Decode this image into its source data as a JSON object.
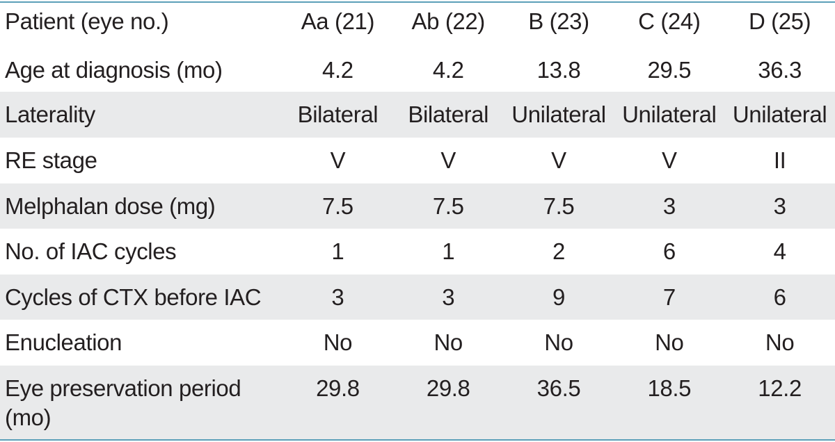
{
  "table": {
    "header": {
      "label": "Patient (eye no.)",
      "columns": [
        "Aa (21)",
        "Ab (22)",
        "B (23)",
        "C (24)",
        "D (25)"
      ]
    },
    "rows": [
      {
        "label": "Age at diagnosis (mo)",
        "values": [
          "4.2",
          "4.2",
          "13.8",
          "29.5",
          "36.3"
        ]
      },
      {
        "label": "Laterality",
        "values": [
          "Bilateral",
          "Bilateral",
          "Unilateral",
          "Unilateral",
          "Unilateral"
        ]
      },
      {
        "label": "RE stage",
        "values": [
          "V",
          "V",
          "V",
          "V",
          "II"
        ]
      },
      {
        "label": "Melphalan dose (mg)",
        "values": [
          "7.5",
          "7.5",
          "7.5",
          "3",
          "3"
        ]
      },
      {
        "label": "No. of IAC cycles",
        "values": [
          "1",
          "1",
          "2",
          "6",
          "4"
        ]
      },
      {
        "label": "Cycles of CTX before IAC",
        "values": [
          "3",
          "3",
          "9",
          "7",
          "6"
        ]
      },
      {
        "label": "Enucleation",
        "values": [
          "No",
          "No",
          "No",
          "No",
          "No"
        ]
      },
      {
        "label": "Eye preservation period",
        "label_line2": "(mo)",
        "values": [
          "29.8",
          "29.8",
          "36.5",
          "18.5",
          "12.2"
        ]
      }
    ]
  },
  "colors": {
    "rule": "#5b9fb8",
    "shade": "#e9eaeb",
    "text": "#231f20"
  }
}
